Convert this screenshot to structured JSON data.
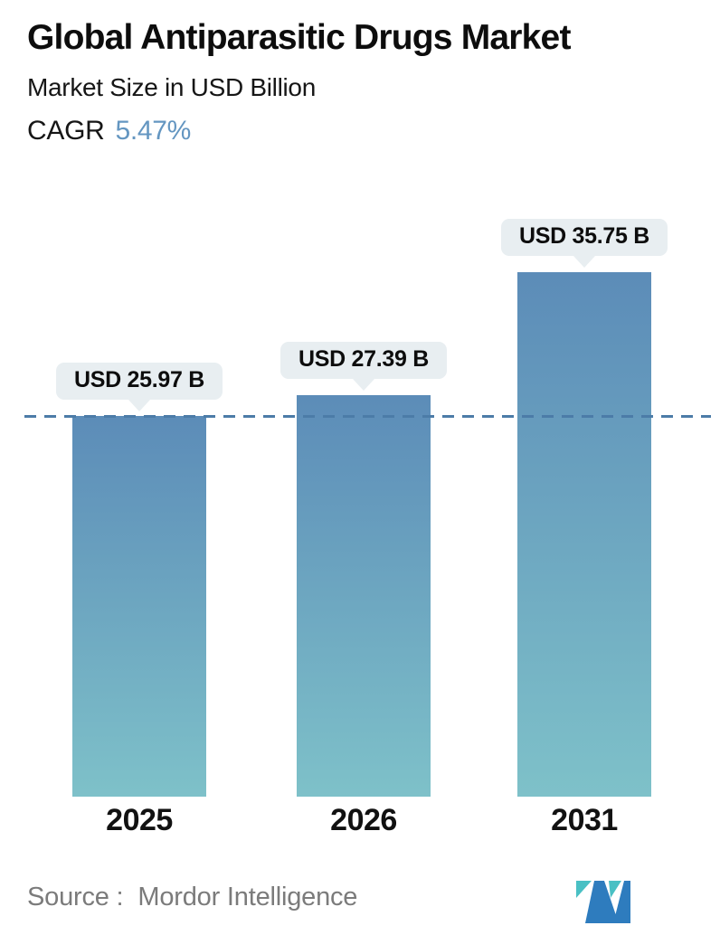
{
  "header": {
    "title": "Global Antiparasitic Drugs Market",
    "subtitle": "Market Size in USD Billion",
    "cagr_label": "CAGR",
    "cagr_value": "5.47%"
  },
  "chart_data": {
    "type": "bar",
    "title": "Global Antiparasitic Drugs Market",
    "subtitle": "Market Size in USD Billion",
    "unit": "USD Billion",
    "categories": [
      "2025",
      "2026",
      "2031"
    ],
    "values": [
      25.97,
      27.39,
      35.75
    ],
    "value_labels": [
      "USD 25.97 B",
      "USD 27.39 B",
      "USD 35.75 B"
    ],
    "cagr": "5.47%",
    "reference_line": {
      "value": 25.97,
      "style": "dashed",
      "note": "level of first bar (2025)"
    },
    "ylim": [
      0,
      40
    ],
    "grid": false,
    "legend": false,
    "bar_gradient_top": "#5c8cb8",
    "bar_gradient_bottom": "#7ec1c9"
  },
  "footer": {
    "source_label": "Source :",
    "source_value": "Mordor Intelligence",
    "logo": "mordor-intelligence-logo"
  },
  "colors": {
    "accent_blue": "#6496c1",
    "bar_top": "#5c8cb8",
    "bar_bottom": "#7ec1c9",
    "dashed_line": "#4c7ca8",
    "callout_bg": "#e8eef1",
    "text_dark": "#0d0d0d",
    "text_gray": "#7b7b7b",
    "logo_teal": "#49c0c4",
    "logo_blue": "#2e7cbe"
  }
}
